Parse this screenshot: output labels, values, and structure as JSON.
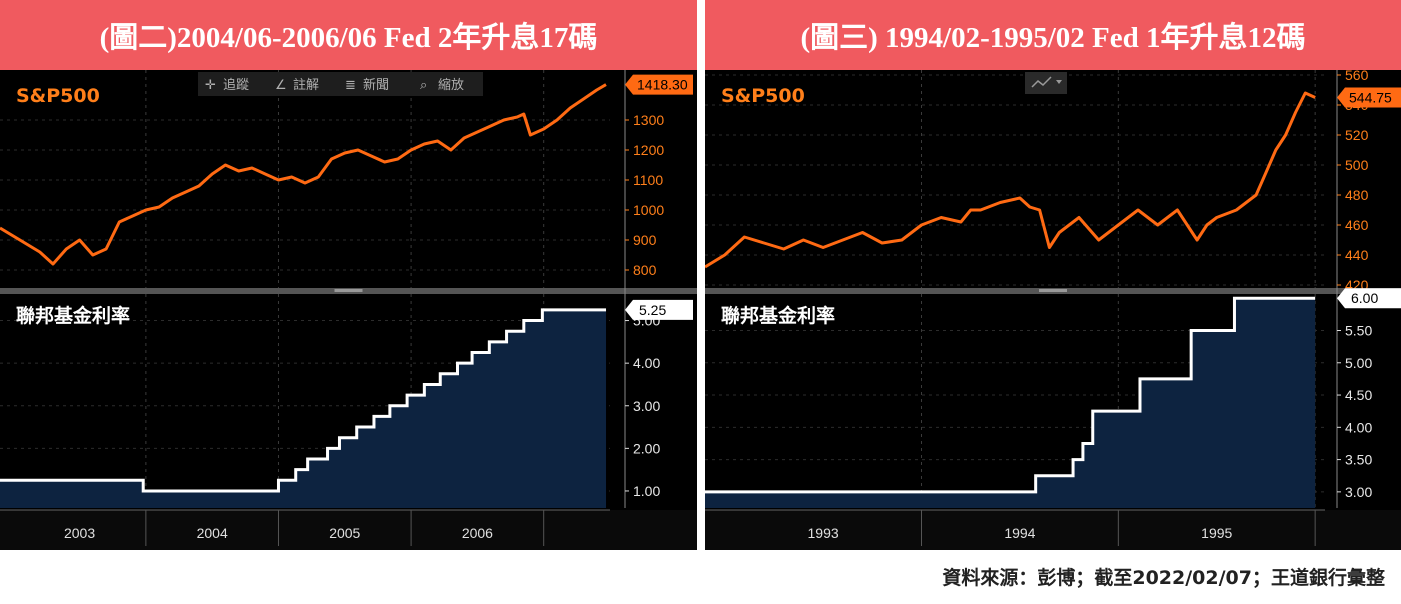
{
  "source_note": "資料來源：彭博；截至2022/02/07；王道銀行彙整",
  "toolbar": {
    "track": "追蹤",
    "annotate": "註解",
    "news": "新聞",
    "zoom": "縮放"
  },
  "colors": {
    "banner": "#f05a5f",
    "sp": "#ff6a13",
    "rate_fill": "#0d2340",
    "rate_line": "#ffffff",
    "label": "#ff7f1a"
  },
  "chart_data": [
    {
      "type": "line",
      "title": "(圖二)2004/06-2006/06 Fed 2年升息17碼",
      "top": {
        "label": "S&P500",
        "last_value": "1418.30",
        "yticks": [
          800,
          900,
          1000,
          1100,
          1200,
          1300
        ],
        "ylim": [
          740,
          1460
        ],
        "x": [
          2002.4,
          2002.55,
          2002.7,
          2002.8,
          2002.9,
          2003.0,
          2003.1,
          2003.2,
          2003.3,
          2003.4,
          2003.5,
          2003.6,
          2003.7,
          2003.8,
          2003.9,
          2004.0,
          2004.1,
          2004.2,
          2004.3,
          2004.4,
          2004.5,
          2004.6,
          2004.7,
          2004.8,
          2004.9,
          2005.0,
          2005.1,
          2005.2,
          2005.3,
          2005.4,
          2005.5,
          2005.6,
          2005.7,
          2005.8,
          2005.9,
          2006.0,
          2006.1,
          2006.2,
          2006.3,
          2006.35,
          2006.4,
          2006.5,
          2006.6,
          2006.7,
          2006.8,
          2006.9,
          2006.97
        ],
        "values": [
          940,
          900,
          860,
          820,
          870,
          900,
          850,
          870,
          960,
          980,
          1000,
          1010,
          1040,
          1060,
          1080,
          1120,
          1150,
          1130,
          1140,
          1120,
          1100,
          1110,
          1090,
          1110,
          1170,
          1190,
          1200,
          1180,
          1160,
          1170,
          1200,
          1220,
          1230,
          1200,
          1240,
          1260,
          1280,
          1300,
          1310,
          1320,
          1250,
          1270,
          1300,
          1340,
          1370,
          1400,
          1418
        ]
      },
      "bottom": {
        "label": "聯邦基金利率",
        "last_value": "5.25",
        "yticks": [
          1.0,
          2.0,
          3.0,
          4.0,
          5.0
        ],
        "ylim": [
          0.6,
          5.6
        ],
        "steps_x": [
          2002.4,
          2003.0,
          2003.48,
          2004.0,
          2004.5,
          2004.63,
          2004.72,
          2004.87,
          2004.96,
          2005.09,
          2005.22,
          2005.34,
          2005.47,
          2005.6,
          2005.72,
          2005.85,
          2005.96,
          2006.09,
          2006.22,
          2006.35,
          2006.49,
          2006.97
        ],
        "steps_y": [
          1.25,
          1.25,
          1.0,
          1.0,
          1.25,
          1.5,
          1.75,
          2.0,
          2.25,
          2.5,
          2.75,
          3.0,
          3.25,
          3.5,
          3.75,
          4.0,
          4.25,
          4.5,
          4.75,
          5.0,
          5.25,
          5.25
        ],
        "xlabels": [
          "2003",
          "2004",
          "2005",
          "2006"
        ]
      }
    },
    {
      "type": "line",
      "title": "(圖三) 1994/02-1995/02 Fed 1年升息12碼",
      "top": {
        "label": "S&P500",
        "last_value": "544.75",
        "yticks": [
          420,
          440,
          460,
          480,
          500,
          520,
          540,
          560
        ],
        "ylim": [
          418,
          562
        ],
        "x": [
          1992.4,
          1992.5,
          1992.6,
          1992.7,
          1992.8,
          1992.9,
          1993.0,
          1993.1,
          1993.2,
          1993.3,
          1993.4,
          1993.5,
          1993.6,
          1993.7,
          1993.75,
          1993.8,
          1993.9,
          1994.0,
          1994.05,
          1994.1,
          1994.15,
          1994.2,
          1994.3,
          1994.4,
          1994.5,
          1994.6,
          1994.7,
          1994.75,
          1994.8,
          1994.9,
          1994.95,
          1995.0,
          1995.1,
          1995.2,
          1995.25,
          1995.3,
          1995.35,
          1995.4,
          1995.45,
          1995.5
        ],
        "values": [
          432,
          440,
          452,
          448,
          444,
          450,
          445,
          450,
          455,
          448,
          450,
          460,
          465,
          462,
          470,
          470,
          475,
          478,
          472,
          470,
          445,
          455,
          465,
          450,
          460,
          470,
          460,
          465,
          470,
          450,
          460,
          465,
          470,
          480,
          495,
          510,
          520,
          535,
          548,
          545
        ]
      },
      "bottom": {
        "label": "聯邦基金利率",
        "last_value": "6.00",
        "yticks": [
          3.0,
          3.5,
          4.0,
          4.5,
          5.0,
          5.5
        ],
        "ylim": [
          2.75,
          6.05
        ],
        "steps_x": [
          1992.4,
          1994.08,
          1994.27,
          1994.32,
          1994.37,
          1994.61,
          1994.87,
          1995.09,
          1995.5
        ],
        "steps_y": [
          3.0,
          3.25,
          3.5,
          3.75,
          4.25,
          4.75,
          5.5,
          6.0,
          6.0
        ],
        "xlabels": [
          "1993",
          "1994",
          "1995"
        ]
      }
    }
  ]
}
